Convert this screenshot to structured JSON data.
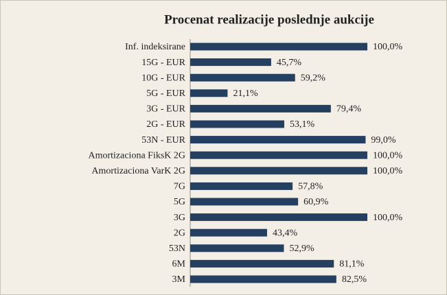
{
  "chart_data": {
    "type": "barh",
    "title": "Procenat realizacije poslednje aukcije",
    "categories": [
      "Inf. indeksirane",
      "15G - EUR",
      "10G - EUR",
      "5G - EUR",
      "3G - EUR",
      "2G - EUR",
      "53N - EUR",
      "Amortizaciona FiksK 2G",
      "Amortizaciona VarK 2G",
      "7G",
      "5G",
      "3G",
      "2G",
      "53N",
      "6M",
      "3M"
    ],
    "values": [
      100.0,
      45.7,
      59.2,
      21.1,
      79.4,
      53.1,
      99.0,
      100.0,
      100.0,
      57.8,
      60.9,
      100.0,
      43.4,
      52.9,
      81.1,
      82.5
    ],
    "value_labels": [
      "100,0%",
      "45,7%",
      "59,2%",
      "21,1%",
      "79,4%",
      "53,1%",
      "99,0%",
      "100,0%",
      "100,0%",
      "57,8%",
      "60,9%",
      "100,0%",
      "43,4%",
      "52,9%",
      "81,1%",
      "82,5%"
    ],
    "color": "#243f60",
    "xlim": [
      0,
      100
    ]
  }
}
